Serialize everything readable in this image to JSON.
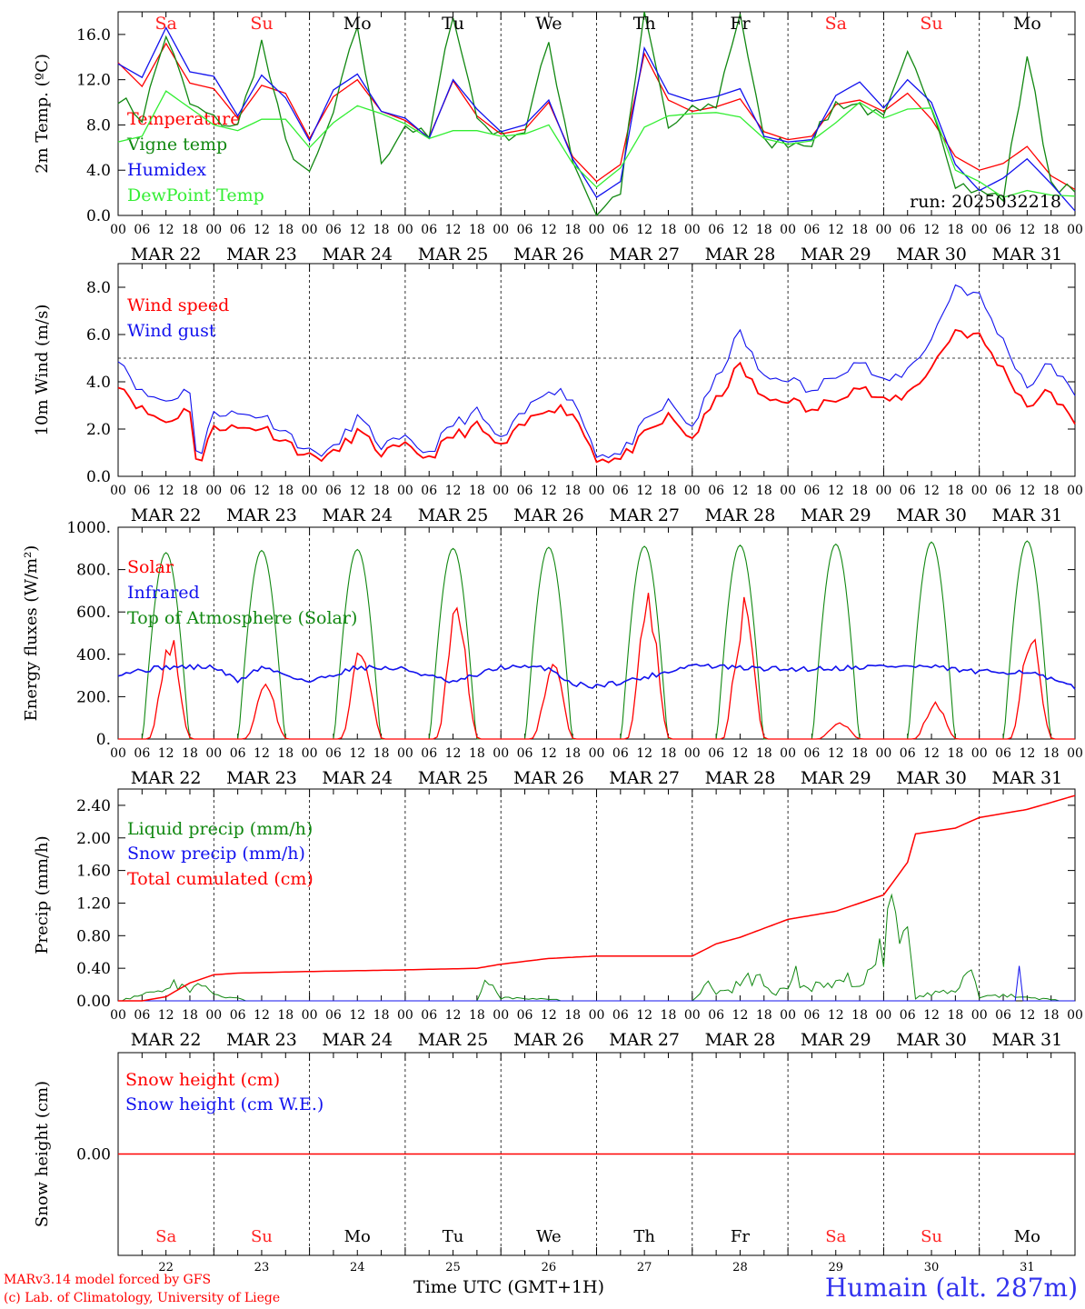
{
  "colors": {
    "red": "#ff0000",
    "green": "#118811",
    "blue": "#1111ee",
    "lightgreen": "#33ee33",
    "saturday_sunday": "#ff2222",
    "weekday": "#000000",
    "station": "#3333ee"
  },
  "footer": {
    "credit1": "MARv3.14 model forced by GFS",
    "credit2": "(c) Lab. of Climatology, University of Liege",
    "xtitle": "Time UTC (GMT+1H)",
    "station": "Humain (alt. 287m)"
  },
  "chart_data": [
    {
      "type": "line",
      "ylabel": "2m Temp. (ºC)",
      "ylim": [
        0,
        18
      ],
      "yticks": [
        "0.0",
        "4.0",
        "8.0",
        "12.0",
        "16.0"
      ],
      "run_label": "run: 2025032218",
      "day_labels": [
        "Sa",
        "Su",
        "Mo",
        "Tu",
        "We",
        "Th",
        "Fr",
        "Sa",
        "Su",
        "Mo"
      ],
      "date_labels": [
        "MAR 22",
        "MAR 23",
        "MAR 24",
        "MAR 25",
        "MAR 26",
        "MAR 27",
        "MAR 28",
        "MAR 29",
        "MAR 30",
        "MAR 31"
      ],
      "hour_labels": [
        "00",
        "06",
        "12",
        "18"
      ],
      "x_unit": "hours since 2025-03-22 00 UTC",
      "series": [
        {
          "name": "Temperature",
          "color": "red",
          "x": [
            0,
            6,
            12,
            18,
            24,
            30,
            36,
            42,
            48,
            54,
            60,
            66,
            72,
            78,
            84,
            90,
            96,
            102,
            108,
            114,
            120,
            126,
            132,
            138,
            144,
            150,
            156,
            162,
            168,
            174,
            180,
            186,
            192,
            198,
            204,
            210,
            216,
            222,
            228,
            234,
            240
          ],
          "values": [
            13.5,
            11.4,
            15.2,
            11.7,
            11.2,
            8.6,
            11.5,
            10.8,
            6.8,
            10.5,
            12.0,
            9.2,
            8.4,
            6.9,
            11.9,
            8.8,
            7.2,
            7.6,
            10.0,
            5.2,
            3.0,
            4.5,
            14.3,
            10.2,
            9.2,
            9.6,
            10.3,
            7.4,
            6.7,
            7.0,
            9.8,
            10.2,
            9.2,
            10.8,
            8.5,
            5.2,
            4.0,
            4.6,
            6.1,
            3.5,
            2.3
          ]
        },
        {
          "name": "Vigne temp",
          "color": "green",
          "x": [
            0,
            6,
            12,
            18,
            24,
            30,
            36,
            42,
            48,
            54,
            60,
            66,
            72,
            78,
            84,
            90,
            96,
            102,
            108,
            114,
            120,
            126,
            132,
            138,
            144,
            150,
            156,
            162,
            168,
            174,
            180,
            186,
            192,
            198,
            204,
            210,
            216,
            222,
            228,
            234,
            240
          ],
          "values": [
            10.5,
            8.6,
            16.0,
            9.8,
            8.5,
            7.8,
            15.3,
            6.4,
            3.4,
            9.0,
            16.8,
            4.8,
            8.0,
            6.8,
            18.0,
            8.6,
            7.0,
            7.5,
            15.3,
            5.0,
            0.0,
            2.2,
            18.0,
            7.7,
            9.2,
            9.8,
            18.0,
            6.4,
            6.5,
            6.6,
            9.9,
            9.8,
            8.4,
            14.0,
            10.0,
            3.0,
            2.0,
            1.6,
            14.2,
            3.0,
            1.9
          ]
        },
        {
          "name": "Humidex",
          "color": "blue",
          "x": [
            0,
            6,
            12,
            18,
            24,
            30,
            36,
            42,
            48,
            54,
            60,
            66,
            72,
            78,
            84,
            90,
            96,
            102,
            108,
            114,
            120,
            126,
            132,
            138,
            144,
            150,
            156,
            162,
            168,
            174,
            180,
            186,
            192,
            198,
            204,
            210,
            216,
            222,
            228,
            234,
            240
          ],
          "values": [
            13.4,
            12.2,
            16.6,
            12.7,
            12.3,
            8.8,
            12.4,
            10.4,
            6.6,
            11.1,
            12.5,
            9.2,
            8.6,
            6.8,
            12.0,
            9.4,
            7.4,
            8.0,
            10.2,
            5.0,
            1.6,
            3.0,
            14.8,
            10.8,
            10.1,
            10.5,
            11.2,
            7.0,
            6.5,
            6.7,
            10.6,
            11.8,
            9.5,
            12.0,
            10.0,
            4.5,
            2.2,
            3.3,
            5.0,
            2.8,
            0.4
          ]
        },
        {
          "name": "DewPoint Temp",
          "color": "lightgreen",
          "x": [
            0,
            6,
            12,
            18,
            24,
            30,
            36,
            42,
            48,
            54,
            60,
            66,
            72,
            78,
            84,
            90,
            96,
            102,
            108,
            114,
            120,
            126,
            132,
            138,
            144,
            150,
            156,
            162,
            168,
            174,
            180,
            186,
            192,
            198,
            204,
            210,
            216,
            222,
            228,
            234,
            240
          ],
          "values": [
            6.5,
            7.0,
            11.0,
            9.5,
            8.0,
            7.5,
            8.5,
            8.5,
            6.0,
            8.2,
            9.7,
            9.0,
            8.1,
            6.8,
            7.5,
            7.5,
            7.0,
            7.2,
            8.0,
            4.6,
            2.5,
            4.2,
            7.8,
            8.8,
            9.0,
            9.1,
            8.7,
            6.8,
            6.3,
            6.6,
            8.2,
            10.0,
            8.6,
            9.4,
            9.5,
            4.0,
            3.0,
            1.6,
            2.2,
            1.8,
            1.7
          ]
        }
      ]
    },
    {
      "type": "line",
      "ylabel": "10m Wind (m/s)",
      "ylim": [
        0,
        9
      ],
      "yticks": [
        "0.0",
        "2.0",
        "4.0",
        "6.0",
        "8.0"
      ],
      "reference_line": 5.0,
      "x_unit": "hours since 2025-03-22 00 UTC",
      "series": [
        {
          "name": "Wind speed",
          "color": "red",
          "x": [
            0,
            6,
            12,
            18,
            20,
            24,
            30,
            36,
            42,
            48,
            54,
            60,
            66,
            72,
            78,
            84,
            90,
            96,
            102,
            108,
            114,
            120,
            126,
            132,
            138,
            144,
            150,
            156,
            162,
            168,
            174,
            180,
            186,
            192,
            198,
            204,
            210,
            216,
            222,
            228,
            234,
            240
          ],
          "values": [
            4.0,
            2.8,
            2.3,
            2.9,
            0.1,
            2.2,
            2.0,
            2.1,
            1.5,
            0.8,
            0.9,
            1.9,
            1.0,
            1.2,
            0.8,
            1.7,
            2.1,
            1.2,
            2.2,
            3.0,
            2.7,
            0.8,
            0.7,
            1.7,
            2.5,
            1.6,
            3.2,
            4.7,
            3.2,
            3.3,
            2.7,
            3.4,
            3.8,
            3.1,
            3.5,
            4.6,
            6.2,
            5.9,
            4.5,
            3.0,
            3.6,
            2.1
          ]
        },
        {
          "name": "Wind gust",
          "color": "blue",
          "x": [
            0,
            6,
            12,
            18,
            20,
            24,
            30,
            36,
            42,
            48,
            54,
            60,
            66,
            72,
            78,
            84,
            90,
            96,
            102,
            108,
            114,
            120,
            126,
            132,
            138,
            144,
            150,
            156,
            162,
            168,
            174,
            180,
            186,
            192,
            198,
            204,
            210,
            216,
            222,
            228,
            234,
            240
          ],
          "values": [
            5.1,
            3.5,
            3.2,
            3.7,
            0.3,
            2.8,
            2.6,
            2.6,
            1.9,
            1.0,
            1.1,
            2.5,
            1.3,
            1.5,
            1.0,
            2.2,
            2.7,
            1.5,
            2.7,
            3.8,
            3.3,
            1.0,
            0.9,
            2.2,
            3.1,
            2.1,
            4.1,
            6.1,
            4.1,
            4.2,
            3.5,
            4.4,
            4.9,
            3.9,
            4.5,
            5.8,
            8.1,
            7.6,
            5.7,
            3.8,
            4.8,
            3.3
          ]
        }
      ]
    },
    {
      "type": "line",
      "ylabel": "Energy fluxes (W/m²)",
      "ylim": [
        0,
        1000
      ],
      "yticks": [
        "0.",
        "200.",
        "400.",
        "600.",
        "800.",
        "1000."
      ],
      "x_unit": "hours since 2025-03-22 00 UTC",
      "series": [
        {
          "name": "Solar",
          "color": "red",
          "daily_peaks_x": [
            13,
            37,
            61,
            85,
            109,
            133,
            157,
            181,
            205,
            229
          ],
          "daily_peaks": [
            490,
            260,
            440,
            660,
            370,
            690,
            670,
            90,
            190,
            490
          ]
        },
        {
          "name": "Infrared",
          "color": "blue",
          "x": [
            0,
            12,
            24,
            30,
            36,
            48,
            60,
            72,
            84,
            96,
            108,
            114,
            120,
            132,
            144,
            156,
            168,
            180,
            192,
            204,
            216,
            228,
            240
          ],
          "values": [
            310,
            340,
            340,
            275,
            340,
            270,
            340,
            330,
            265,
            340,
            335,
            260,
            250,
            290,
            350,
            335,
            330,
            335,
            345,
            340,
            315,
            320,
            240
          ]
        },
        {
          "name": "Top of Atmosphere (Solar)",
          "color": "green",
          "daily_peaks_x": [
            12,
            36,
            60,
            84,
            108,
            132,
            156,
            180,
            204,
            228
          ],
          "daily_peaks": [
            880,
            890,
            895,
            900,
            905,
            910,
            915,
            920,
            930,
            935
          ]
        }
      ]
    },
    {
      "type": "line",
      "ylabel": "Precip (mm/h)",
      "ylim": [
        0,
        2.6
      ],
      "yticks": [
        "0.00",
        "0.40",
        "0.80",
        "1.20",
        "1.60",
        "2.00",
        "2.40"
      ],
      "x_unit": "hours since 2025-03-22 00 UTC",
      "series": [
        {
          "name": "Liquid precip (mm/h)",
          "color": "green",
          "x": [
            0,
            10,
            14,
            18,
            20,
            24,
            34,
            72,
            90,
            92,
            96,
            120,
            144,
            148,
            150,
            156,
            160,
            164,
            170,
            172,
            178,
            188,
            194,
            196,
            198,
            200,
            210,
            214,
            216,
            222,
            228,
            240
          ],
          "values": [
            0.0,
            0.15,
            0.28,
            0.25,
            0.32,
            0.1,
            0.0,
            0.0,
            0.0,
            0.36,
            0.05,
            0.0,
            0.0,
            0.36,
            0.1,
            0.3,
            0.45,
            0.1,
            0.45,
            0.2,
            0.3,
            0.4,
            1.35,
            0.9,
            1.45,
            0.05,
            0.25,
            0.65,
            0.05,
            0.1,
            0.05,
            0.0
          ]
        },
        {
          "name": "Snow precip (mm/h)",
          "color": "blue",
          "x": [
            0,
            225,
            226,
            227,
            240
          ],
          "values": [
            0.0,
            0.0,
            0.43,
            0.0,
            0.0
          ]
        },
        {
          "name": "Total cumulated (cm)",
          "color": "red",
          "x": [
            0,
            6,
            12,
            18,
            24,
            30,
            48,
            72,
            90,
            96,
            108,
            120,
            132,
            144,
            150,
            156,
            168,
            180,
            186,
            192,
            198,
            200,
            210,
            216,
            228,
            240
          ],
          "values": [
            0.0,
            0.0,
            0.05,
            0.22,
            0.32,
            0.34,
            0.36,
            0.38,
            0.4,
            0.45,
            0.52,
            0.55,
            0.55,
            0.55,
            0.7,
            0.78,
            1.0,
            1.1,
            1.2,
            1.3,
            1.7,
            2.05,
            2.12,
            2.25,
            2.35,
            2.52
          ]
        }
      ]
    },
    {
      "type": "line",
      "ylabel": "Snow height (cm)",
      "yticks": [
        "0.00"
      ],
      "x_unit": "hours since 2025-03-22 00 UTC",
      "series": [
        {
          "name": "Snow height (cm)",
          "color": "red",
          "x": [
            0,
            240
          ],
          "values": [
            0.0,
            0.0
          ]
        },
        {
          "name": "Snow height (cm W.E.)",
          "color": "blue",
          "x": [
            0,
            240
          ],
          "values": [
            0.0,
            0.0
          ]
        }
      ],
      "day_labels": [
        "Sa",
        "Su",
        "Mo",
        "Tu",
        "We",
        "Th",
        "Fr",
        "Sa",
        "Su",
        "Mo"
      ],
      "day_numbers": [
        "22",
        "23",
        "24",
        "25",
        "26",
        "27",
        "28",
        "29",
        "30",
        "31"
      ]
    }
  ]
}
